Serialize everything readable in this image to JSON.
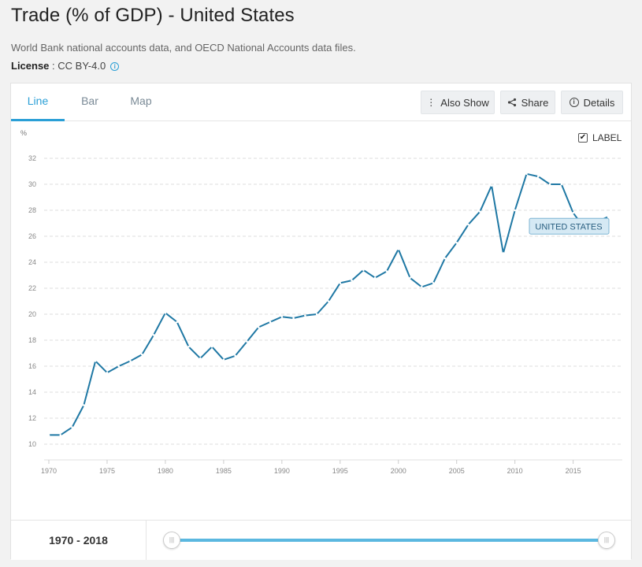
{
  "page": {
    "title": "Trade (% of GDP) - United States",
    "source": "World Bank national accounts data, and OECD National Accounts data files.",
    "license_label": "License",
    "license_sep": " : ",
    "license_value": "CC BY-4.0"
  },
  "tabs": [
    {
      "label": "Line",
      "active": true
    },
    {
      "label": "Bar",
      "active": false
    },
    {
      "label": "Map",
      "active": false
    }
  ],
  "toolbar": {
    "also_show_label": "Also Show",
    "share_label": "Share",
    "details_label": "Details"
  },
  "label_toggle": {
    "label": "LABEL",
    "checked": true
  },
  "range": {
    "label": "1970 - 2018",
    "start": 1970,
    "end": 2018
  },
  "colors": {
    "line": "#1f78a4",
    "accent": "#2a9fd6",
    "series_label_bg": "#d5e9f4",
    "series_label_border": "#7fb5d3"
  },
  "chart_data": {
    "type": "line",
    "ylabel": "%",
    "ylim": [
      10,
      32
    ],
    "yticks": [
      10,
      12,
      14,
      16,
      18,
      20,
      22,
      24,
      26,
      28,
      30,
      32
    ],
    "xlim": [
      1970,
      2018
    ],
    "xticks": [
      1970,
      1975,
      1980,
      1985,
      1990,
      1995,
      2000,
      2005,
      2010,
      2015
    ],
    "grid": true,
    "series": [
      {
        "name": "UNITED STATES",
        "x": [
          1970,
          1971,
          1972,
          1973,
          1974,
          1975,
          1976,
          1977,
          1978,
          1979,
          1980,
          1981,
          1982,
          1983,
          1984,
          1985,
          1986,
          1987,
          1988,
          1989,
          1990,
          1991,
          1992,
          1993,
          1994,
          1995,
          1996,
          1997,
          1998,
          1999,
          2000,
          2001,
          2002,
          2003,
          2004,
          2005,
          2006,
          2007,
          2008,
          2009,
          2010,
          2011,
          2012,
          2013,
          2014,
          2015,
          2016,
          2017,
          2018
        ],
        "values": [
          10.7,
          10.7,
          11.3,
          13.0,
          16.4,
          15.5,
          16.0,
          16.4,
          16.9,
          18.4,
          20.1,
          19.4,
          17.5,
          16.6,
          17.5,
          16.5,
          16.8,
          17.9,
          19.0,
          19.4,
          19.8,
          19.7,
          19.9,
          20.0,
          21.0,
          22.4,
          22.6,
          23.4,
          22.8,
          23.3,
          25.0,
          22.8,
          22.1,
          22.4,
          24.3,
          25.5,
          26.9,
          27.9,
          29.9,
          24.7,
          28.0,
          30.8,
          30.6,
          30.0,
          30.0,
          27.8,
          26.6,
          27.1,
          27.5
        ]
      }
    ]
  }
}
